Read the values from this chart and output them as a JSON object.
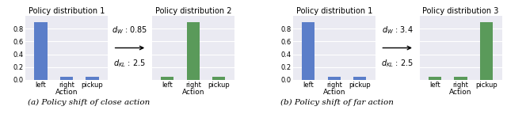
{
  "categories": [
    "left",
    "right",
    "pickup"
  ],
  "xlabel": "Action",
  "dist1_values": [
    0.9,
    0.05,
    0.05
  ],
  "dist2_values": [
    0.05,
    0.9,
    0.05
  ],
  "dist3_values": [
    0.05,
    0.05,
    0.9
  ],
  "dist1_color": "#5b7ec9",
  "dist2_color": "#5a9a5a",
  "dist3_color": "#5a9a5a",
  "title1": "Policy distribution 1",
  "title2": "Policy distribution 2",
  "title3": "Policy distribution 3",
  "dw1": "0.85",
  "dkl1": "2.5",
  "dw2": "3.4",
  "dkl2": "2.5",
  "caption_a": "(a) Policy shift of close action",
  "caption_b": "(b) Policy shift of far action",
  "ylim": [
    0,
    1.0
  ],
  "yticks": [
    0.0,
    0.2,
    0.4,
    0.6,
    0.8
  ],
  "background_color": "#eaeaf2"
}
